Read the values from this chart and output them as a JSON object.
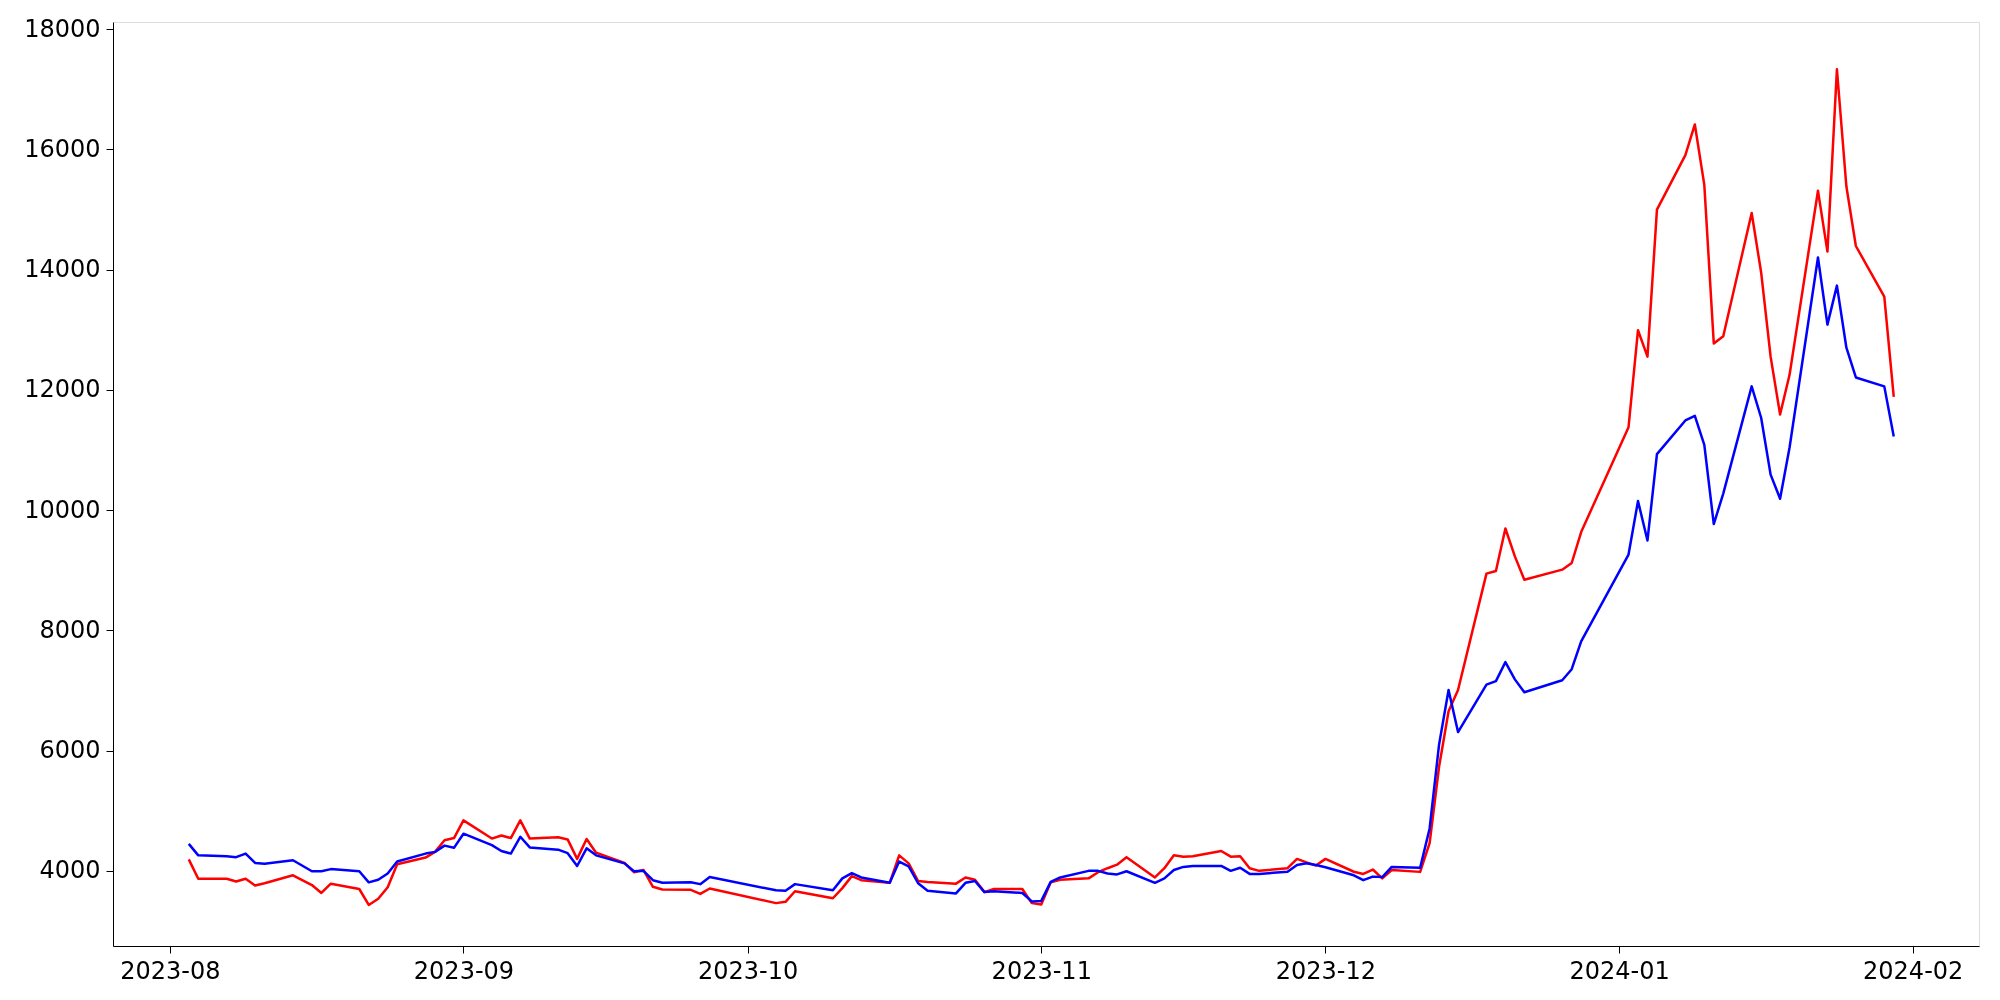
{
  "chart_data": {
    "type": "line",
    "x": [
      "2023-08-03",
      "2023-08-04",
      "2023-08-07",
      "2023-08-08",
      "2023-08-09",
      "2023-08-10",
      "2023-08-11",
      "2023-08-14",
      "2023-08-16",
      "2023-08-17",
      "2023-08-18",
      "2023-08-21",
      "2023-08-22",
      "2023-08-23",
      "2023-08-24",
      "2023-08-25",
      "2023-08-28",
      "2023-08-29",
      "2023-08-30",
      "2023-08-31",
      "2023-09-01",
      "2023-09-04",
      "2023-09-05",
      "2023-09-06",
      "2023-09-07",
      "2023-09-08",
      "2023-09-11",
      "2023-09-12",
      "2023-09-13",
      "2023-09-14",
      "2023-09-15",
      "2023-09-18",
      "2023-09-19",
      "2023-09-20",
      "2023-09-21",
      "2023-09-22",
      "2023-09-25",
      "2023-09-26",
      "2023-09-27",
      "2023-10-04",
      "2023-10-05",
      "2023-10-06",
      "2023-10-10",
      "2023-10-11",
      "2023-10-12",
      "2023-10-13",
      "2023-10-16",
      "2023-10-17",
      "2023-10-18",
      "2023-10-19",
      "2023-10-20",
      "2023-10-23",
      "2023-10-24",
      "2023-10-25",
      "2023-10-26",
      "2023-10-27",
      "2023-10-30",
      "2023-10-31",
      "2023-11-01",
      "2023-11-02",
      "2023-11-03",
      "2023-11-06",
      "2023-11-07",
      "2023-11-08",
      "2023-11-09",
      "2023-11-10",
      "2023-11-13",
      "2023-11-14",
      "2023-11-15",
      "2023-11-16",
      "2023-11-17",
      "2023-11-20",
      "2023-11-21",
      "2023-11-22",
      "2023-11-23",
      "2023-11-24",
      "2023-11-27",
      "2023-11-28",
      "2023-11-29",
      "2023-11-30",
      "2023-12-01",
      "2023-12-04",
      "2023-12-05",
      "2023-12-06",
      "2023-12-07",
      "2023-12-08",
      "2023-12-11",
      "2023-12-12",
      "2023-12-13",
      "2023-12-14",
      "2023-12-15",
      "2023-12-18",
      "2023-12-19",
      "2023-12-20",
      "2023-12-21",
      "2023-12-22",
      "2023-12-26",
      "2023-12-27",
      "2023-12-28",
      "2024-01-02",
      "2024-01-03",
      "2024-01-04",
      "2024-01-05",
      "2024-01-08",
      "2024-01-09",
      "2024-01-10",
      "2024-01-11",
      "2024-01-12",
      "2024-01-15",
      "2024-01-16",
      "2024-01-17",
      "2024-01-18",
      "2024-01-19",
      "2024-01-22",
      "2024-01-23",
      "2024-01-24",
      "2024-01-25",
      "2024-01-26",
      "2024-01-29",
      "2024-01-30"
    ],
    "series": [
      {
        "color": "#ff0000",
        "values": [
          4191,
          3868,
          3868,
          3823,
          3868,
          3757,
          3794,
          3926,
          3764,
          3632,
          3787,
          3698,
          3433,
          3536,
          3728,
          4110,
          4221,
          4316,
          4508,
          4545,
          4839,
          4537,
          4589,
          4545,
          4839,
          4537,
          4559,
          4523,
          4199,
          4530,
          4302,
          4132,
          3978,
          4015,
          3735,
          3691,
          3684,
          3617,
          3706,
          3463,
          3485,
          3661,
          3544,
          3713,
          3912,
          3845,
          3801,
          4258,
          4125,
          3831,
          3816,
          3787,
          3890,
          3853,
          3647,
          3698,
          3698,
          3463,
          3441,
          3809,
          3853,
          3875,
          3978,
          4044,
          4103,
          4228,
          3890,
          4044,
          4258,
          4236,
          4243,
          4331,
          4236,
          4243,
          4044,
          4000,
          4044,
          4199,
          4140,
          4088,
          4199,
          3985,
          3948,
          4022,
          3875,
          4015,
          3983,
          4462,
          5735,
          6655,
          7008,
          8944,
          8988,
          9695,
          9231,
          8841,
          9010,
          9121,
          9636,
          11380,
          12993,
          12553,
          14998,
          15905,
          16416,
          15411,
          12773,
          12894,
          14943,
          13954,
          12553,
          11592,
          12251,
          15312,
          14301,
          17334,
          15383,
          14394,
          13553,
          11883
        ]
      },
      {
        "color": "#0000ff",
        "values": [
          4449,
          4258,
          4243,
          4228,
          4287,
          4132,
          4118,
          4177,
          3993,
          3993,
          4029,
          3993,
          3809,
          3853,
          3956,
          4155,
          4287,
          4316,
          4420,
          4383,
          4618,
          4427,
          4331,
          4287,
          4567,
          4390,
          4353,
          4294,
          4081,
          4375,
          4258,
          4125,
          3993,
          4000,
          3845,
          3801,
          3809,
          3779,
          3897,
          3676,
          3669,
          3779,
          3676,
          3875,
          3963,
          3890,
          3801,
          4155,
          4074,
          3794,
          3669,
          3625,
          3801,
          3831,
          3647,
          3661,
          3632,
          3492,
          3500,
          3816,
          3890,
          4000,
          4000,
          3956,
          3941,
          3993,
          3801,
          3875,
          4015,
          4066,
          4081,
          4081,
          4000,
          4051,
          3949,
          3949,
          3985,
          4096,
          4125,
          4096,
          4059,
          3926,
          3845,
          3904,
          3897,
          4066,
          4050,
          4705,
          6103,
          7008,
          6309,
          7097,
          7156,
          7472,
          7185,
          6972,
          7170,
          7354,
          7818,
          9261,
          10151,
          9496,
          10932,
          11492,
          11569,
          11086,
          9769,
          10276,
          12059,
          11537,
          10591,
          10190,
          11042,
          14202,
          13086,
          13735,
          12702,
          12207,
          12059,
          11224
        ]
      }
    ],
    "xlim": [
      "2023-07-26",
      "2024-02-08"
    ],
    "xticks": [
      "2023-08",
      "2023-09",
      "2023-10",
      "2023-11",
      "2023-12",
      "2024-01",
      "2024-02"
    ],
    "ylim": [
      2750,
      18120
    ],
    "yticks": [
      4000,
      6000,
      8000,
      10000,
      12000,
      14000,
      16000,
      18000
    ],
    "grid": false,
    "marker": "none",
    "line_style": "solid"
  }
}
